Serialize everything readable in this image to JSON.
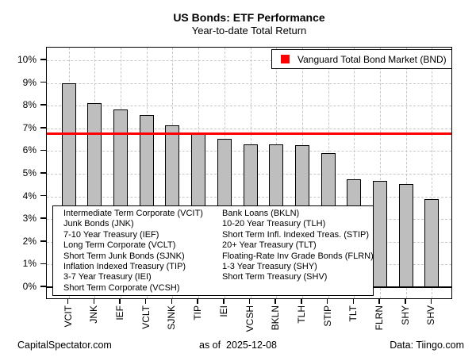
{
  "header": {
    "title": "US Bonds: ETF Performance",
    "subtitle": "Year-to-date Total Return"
  },
  "chart_data": {
    "type": "bar",
    "title": "US Bonds: ETF Performance",
    "subtitle": "Year-to-date Total Return",
    "categories": [
      "VCIT",
      "JNK",
      "IEF",
      "VCLT",
      "SJNK",
      "TIP",
      "IEI",
      "VCSH",
      "BKLN",
      "TLH",
      "STIP",
      "TLT",
      "FLRN",
      "SHY",
      "SHV"
    ],
    "values": [
      9.0,
      8.1,
      7.85,
      7.6,
      7.15,
      6.8,
      6.55,
      6.3,
      6.3,
      6.25,
      5.9,
      4.75,
      4.7,
      4.55,
      3.9
    ],
    "unit": "%",
    "ylim": [
      0,
      10.5
    ],
    "ytick_labels": [
      "0%",
      "1%",
      "2%",
      "3%",
      "4%",
      "5%",
      "6%",
      "7%",
      "8%",
      "9%",
      "10%"
    ],
    "grid": "dashed horizontal and vertical",
    "legend_position": "top-right",
    "bar_color": "#bebebe",
    "bar_border_color": "#000000",
    "reference_line": {
      "label": "Vanguard Total Bond Market (BND)",
      "value": 6.75,
      "color": "#ff0000"
    }
  },
  "key_box": {
    "left_column": [
      "Intermediate Term Corporate (VCIT)",
      "Junk Bonds (JNK)",
      "7-10 Year Treasury (IEF)",
      "Long Term Corporate (VCLT)",
      "Short Term Junk Bonds (SJNK)",
      "Inflation Indexed Treasury (TIP)",
      "3-7 Year Treasury (IEI)",
      "Short Term Corporate (VCSH)"
    ],
    "right_column": [
      "Bank Loans (BKLN)",
      "10-20 Year Treasury (TLH)",
      "Short Term Infl. Indexed Treas. (STIP)",
      "20+ Year Treasury (TLT)",
      "Floating-Rate Inv Grade Bonds (FLRN)",
      "1-3 Year Treasury (SHY)",
      "Short Term Treasury (SHV)"
    ]
  },
  "footer": {
    "left": "CapitalSpectator.com",
    "center": "as of  2025-12-08",
    "right": "Data: Tiingo.com"
  }
}
